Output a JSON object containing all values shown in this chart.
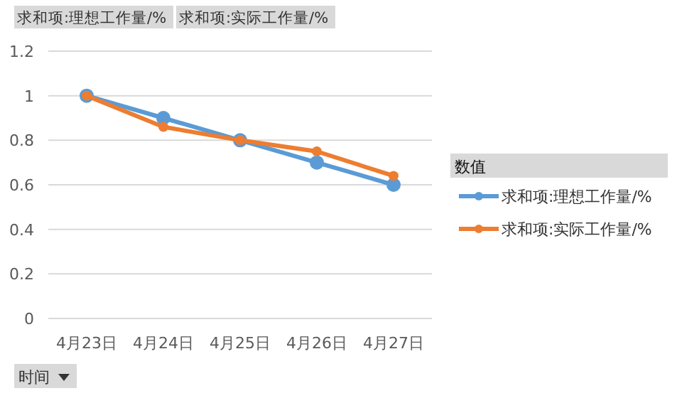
{
  "chart_data": {
    "type": "line",
    "xlabel": "时间",
    "legend_title": "数值",
    "annotations": [
      "求和项:理想工作量/%",
      "求和项:实际工作量/%"
    ],
    "categories": [
      "4月23日",
      "4月24日",
      "4月25日",
      "4月26日",
      "4月27日"
    ],
    "series": [
      {
        "name": "求和项:理想工作量/%",
        "color": "#5b9bd5",
        "values": [
          1,
          0.9,
          0.8,
          0.7,
          0.6
        ]
      },
      {
        "name": "求和项:实际工作量/%",
        "color": "#ed7d31",
        "values": [
          1,
          0.86,
          0.8,
          0.75,
          0.64
        ]
      }
    ],
    "ylim": [
      0,
      1.2
    ],
    "yticks": [
      0,
      0.2,
      0.4,
      0.6,
      0.8,
      1,
      1.2
    ],
    "grid": "y",
    "legend": "right",
    "marker": "circle",
    "line_style": "solid"
  }
}
